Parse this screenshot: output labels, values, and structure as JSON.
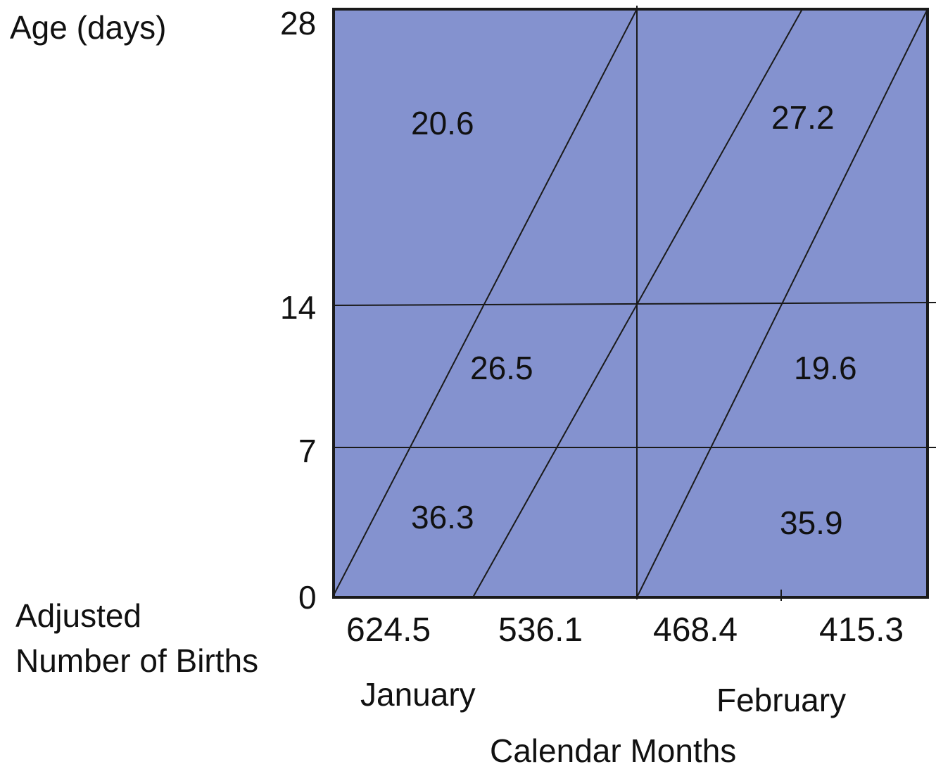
{
  "y_axis": {
    "title": "Age (days)",
    "ticks": [
      "28",
      "14",
      "7",
      "0"
    ]
  },
  "cells": {
    "jan_upper": "20.6",
    "jan_middle": "26.5",
    "jan_lower": "36.3",
    "feb_upper": "27.2",
    "feb_middle": "19.6",
    "feb_lower": "35.9"
  },
  "births": {
    "label_line1": "Adjusted",
    "label_line2": "Number of Births",
    "values": [
      "624.5",
      "536.1",
      "468.4",
      "415.3"
    ]
  },
  "months": [
    "January",
    "February"
  ],
  "x_axis": {
    "title": "Calendar Months"
  },
  "colors": {
    "fill": "#8492cf",
    "line": "#1a1a1a"
  }
}
